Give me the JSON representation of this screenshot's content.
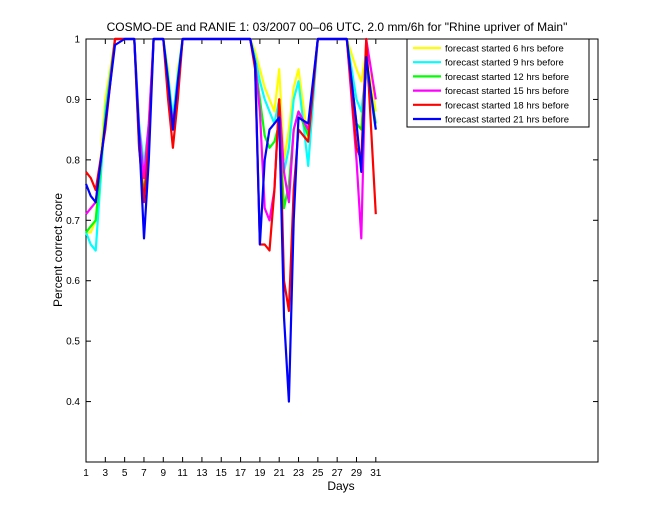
{
  "chart_data": {
    "type": "line",
    "title": "COSMO-DE and RANIE 1: 03/2007 00–06 UTC, 2.0 mm/6h for \"Rhine upriver of Main\"",
    "xlabel": "Days",
    "ylabel": "Percent correct score",
    "xlim": [
      1,
      54
    ],
    "ylim": [
      0.3,
      1.0
    ],
    "x_ticks": [
      1,
      3,
      5,
      7,
      9,
      11,
      13,
      15,
      17,
      19,
      21,
      23,
      25,
      27,
      29,
      31
    ],
    "x_tick_labels": [
      "1",
      "3",
      "5",
      "7",
      "9",
      "11",
      "13",
      "15",
      "17",
      "19",
      "21",
      "23",
      "25",
      "27",
      "29",
      "31"
    ],
    "y_ticks": [
      0.4,
      0.5,
      0.6,
      0.7,
      0.8,
      0.9,
      1.0
    ],
    "y_tick_labels": [
      "0.4",
      "0.5",
      "0.6",
      "0.7",
      "0.8",
      "0.9",
      "1"
    ],
    "legend_position": "top-right",
    "grid": false,
    "series": [
      {
        "name": "forecast started 6 hrs before",
        "color": "#ffff00",
        "x": [
          1,
          1.5,
          2,
          3,
          4,
          5,
          6,
          6.5,
          7,
          7.5,
          8,
          9,
          9.5,
          10,
          10.5,
          11,
          12,
          13,
          14,
          15,
          16,
          17,
          18,
          18.5,
          19,
          19.5,
          20,
          20.5,
          21,
          21.5,
          22,
          22.5,
          23,
          24,
          25,
          26,
          27,
          28,
          29,
          29.5,
          30,
          31
        ],
        "y": [
          0.68,
          0.68,
          0.7,
          0.9,
          1.0,
          1.0,
          1.0,
          0.85,
          0.8,
          0.85,
          1.0,
          1.0,
          0.95,
          0.85,
          0.95,
          1.0,
          1.0,
          1.0,
          1.0,
          1.0,
          1.0,
          1.0,
          1.0,
          0.98,
          0.95,
          0.92,
          0.9,
          0.88,
          0.95,
          0.8,
          0.85,
          0.92,
          0.95,
          0.83,
          1.0,
          1.0,
          1.0,
          1.0,
          0.95,
          0.93,
          0.98,
          0.88
        ]
      },
      {
        "name": "forecast started 9 hrs before",
        "color": "#00ffff",
        "x": [
          1,
          1.5,
          2,
          3,
          4,
          5,
          6,
          6.5,
          7,
          7.5,
          8,
          9,
          9.5,
          10,
          10.5,
          11,
          12,
          13,
          14,
          15,
          16,
          17,
          18,
          18.5,
          19,
          19.5,
          20,
          20.5,
          21,
          21.5,
          22,
          22.5,
          23,
          24,
          25,
          26,
          27,
          28,
          29,
          29.5,
          30,
          31
        ],
        "y": [
          0.68,
          0.66,
          0.65,
          0.88,
          1.0,
          1.0,
          1.0,
          0.86,
          0.79,
          0.86,
          1.0,
          1.0,
          0.94,
          0.87,
          0.94,
          1.0,
          1.0,
          1.0,
          1.0,
          1.0,
          1.0,
          1.0,
          1.0,
          0.97,
          0.93,
          0.9,
          0.88,
          0.86,
          0.9,
          0.78,
          0.82,
          0.9,
          0.93,
          0.79,
          1.0,
          1.0,
          1.0,
          1.0,
          0.9,
          0.88,
          0.95,
          0.85
        ]
      },
      {
        "name": "forecast started 12 hrs before",
        "color": "#00ff00",
        "x": [
          1,
          1.5,
          2,
          3,
          4,
          5,
          6,
          6.5,
          7,
          7.5,
          8,
          9,
          9.5,
          10,
          10.5,
          11,
          12,
          13,
          14,
          15,
          16,
          17,
          18,
          18.5,
          19,
          19.5,
          20,
          20.5,
          21,
          21.5,
          22,
          22.5,
          23,
          24,
          25,
          26,
          27,
          28,
          29,
          29.5,
          30,
          31
        ],
        "y": [
          0.68,
          0.69,
          0.7,
          0.87,
          1.0,
          1.0,
          1.0,
          0.82,
          0.74,
          0.84,
          1.0,
          1.0,
          0.93,
          0.86,
          0.92,
          1.0,
          1.0,
          1.0,
          1.0,
          1.0,
          1.0,
          1.0,
          1.0,
          0.96,
          0.9,
          0.84,
          0.82,
          0.83,
          0.86,
          0.72,
          0.76,
          0.85,
          0.88,
          0.84,
          1.0,
          1.0,
          1.0,
          1.0,
          0.86,
          0.85,
          0.96,
          0.86
        ]
      },
      {
        "name": "forecast started 15 hrs before",
        "color": "#ff00ff",
        "x": [
          1,
          1.5,
          2,
          3,
          4,
          5,
          6,
          6.5,
          7,
          7.5,
          8,
          9,
          9.5,
          10,
          10.5,
          11,
          12,
          13,
          14,
          15,
          16,
          17,
          18,
          18.5,
          19,
          19.5,
          20,
          20.5,
          21,
          21.5,
          22,
          22.5,
          23,
          24,
          25,
          26,
          27,
          28,
          29,
          29.5,
          30,
          31
        ],
        "y": [
          0.71,
          0.72,
          0.73,
          0.86,
          1.0,
          1.0,
          1.0,
          0.85,
          0.77,
          0.86,
          1.0,
          1.0,
          0.92,
          0.86,
          0.92,
          1.0,
          1.0,
          1.0,
          1.0,
          1.0,
          1.0,
          1.0,
          1.0,
          0.96,
          0.88,
          0.72,
          0.7,
          0.75,
          0.9,
          0.78,
          0.73,
          0.85,
          0.88,
          0.85,
          1.0,
          1.0,
          1.0,
          1.0,
          0.8,
          0.67,
          1.0,
          0.9
        ]
      },
      {
        "name": "forecast started 18 hrs before",
        "color": "#ff0000",
        "x": [
          1,
          1.5,
          2,
          3,
          4,
          5,
          6,
          6.5,
          7,
          7.5,
          8,
          9,
          9.5,
          10,
          10.5,
          11,
          12,
          13,
          14,
          15,
          16,
          17,
          18,
          18.5,
          19,
          19.5,
          20,
          20.5,
          21,
          21.5,
          22,
          22.5,
          23,
          24,
          25,
          26,
          27,
          28,
          29,
          29.5,
          30,
          31
        ],
        "y": [
          0.78,
          0.77,
          0.75,
          0.85,
          1.0,
          1.0,
          1.0,
          0.82,
          0.73,
          0.83,
          1.0,
          1.0,
          0.9,
          0.82,
          0.9,
          1.0,
          1.0,
          1.0,
          1.0,
          1.0,
          1.0,
          1.0,
          1.0,
          0.95,
          0.66,
          0.66,
          0.65,
          0.75,
          0.9,
          0.6,
          0.55,
          0.75,
          0.85,
          0.83,
          1.0,
          1.0,
          1.0,
          1.0,
          0.82,
          0.8,
          1.0,
          0.71
        ]
      },
      {
        "name": "forecast started 21 hrs before",
        "color": "#0000ff",
        "x": [
          1,
          1.5,
          2,
          3,
          4,
          5,
          6,
          6.5,
          7,
          7.5,
          8,
          9,
          9.5,
          10,
          10.5,
          11,
          12,
          13,
          14,
          15,
          16,
          17,
          18,
          18.5,
          19,
          19.5,
          20,
          20.5,
          21,
          21.5,
          22,
          22.5,
          23,
          24,
          25,
          26,
          27,
          28,
          29,
          29.5,
          30,
          31
        ],
        "y": [
          0.76,
          0.74,
          0.73,
          0.86,
          0.99,
          1.0,
          1.0,
          0.84,
          0.67,
          0.8,
          1.0,
          1.0,
          0.93,
          0.85,
          0.93,
          1.0,
          1.0,
          1.0,
          1.0,
          1.0,
          1.0,
          1.0,
          1.0,
          0.96,
          0.66,
          0.8,
          0.85,
          0.86,
          0.87,
          0.54,
          0.4,
          0.7,
          0.87,
          0.86,
          1.0,
          1.0,
          1.0,
          1.0,
          0.86,
          0.78,
          0.97,
          0.85
        ]
      }
    ]
  }
}
